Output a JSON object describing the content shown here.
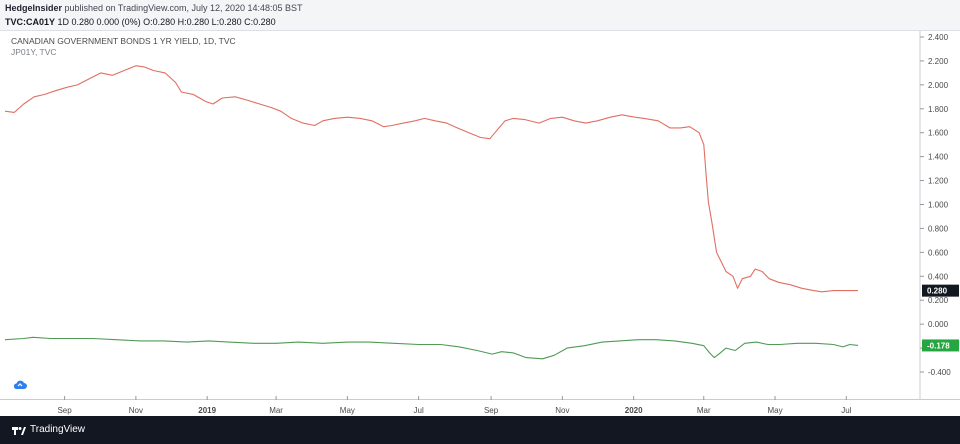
{
  "header": {
    "author": "HedgeInsider",
    "published_text": "published on TradingView.com, July 12, 2020 14:48:05 BST",
    "symbol": "TVC:CA01Y",
    "quote": "1D 0.280 0.000 (0%) O:0.280 H:0.280 L:0.280 C:0.280"
  },
  "legend": {
    "title": "CANADIAN GOVERNMENT BONDS 1 YR YIELD, 1D, TVC",
    "subtitle": "JP01Y, TVC"
  },
  "footer": {
    "brand": "TradingView"
  },
  "icons": {
    "footer_logo": "tradingview-logo-icon",
    "cloud": "cloud-sync-icon"
  },
  "colors": {
    "series_red": "#e06f62",
    "series_green": "#4f9a55",
    "axis_text": "#4a4a4a",
    "price_tag_dark": "#131722",
    "price_tag_green": "#26a641"
  },
  "chart_data": {
    "type": "line",
    "title": "CANADIAN GOVERNMENT BONDS 1 YR YIELD, 1D, TVC",
    "xlabel": "",
    "ylabel": "",
    "ylim": [
      -0.5,
      2.45
    ],
    "y_ticks": [
      "2.400",
      "2.200",
      "2.000",
      "1.800",
      "1.600",
      "1.400",
      "1.200",
      "1.000",
      "0.800",
      "0.600",
      "0.400",
      "0.200",
      "0.000",
      "-0.200",
      "-0.400"
    ],
    "x_ticks": [
      "Sep",
      "Nov",
      "2019",
      "Mar",
      "May",
      "Jul",
      "Sep",
      "Nov",
      "2020",
      "Mar",
      "May",
      "Jul"
    ],
    "x_tick_dates": [
      "2018-09-01",
      "2018-11-01",
      "2019-01-01",
      "2019-03-01",
      "2019-05-01",
      "2019-07-01",
      "2019-09-01",
      "2019-11-01",
      "2020-01-01",
      "2020-03-01",
      "2020-05-01",
      "2020-07-01"
    ],
    "x_range": [
      "2018-07-12",
      "2020-07-11"
    ],
    "grid": false,
    "series": [
      {
        "name": "CANADIAN GOVERNMENT BONDS 1 YR YIELD",
        "color": "#e06f62",
        "last_value_label": "0.280",
        "points": [
          [
            "2018-07-12",
            1.78
          ],
          [
            "2018-07-20",
            1.77
          ],
          [
            "2018-07-28",
            1.84
          ],
          [
            "2018-08-06",
            1.9
          ],
          [
            "2018-08-15",
            1.92
          ],
          [
            "2018-08-24",
            1.95
          ],
          [
            "2018-09-03",
            1.98
          ],
          [
            "2018-09-12",
            2.0
          ],
          [
            "2018-09-22",
            2.05
          ],
          [
            "2018-10-02",
            2.1
          ],
          [
            "2018-10-12",
            2.08
          ],
          [
            "2018-10-22",
            2.12
          ],
          [
            "2018-11-01",
            2.16
          ],
          [
            "2018-11-08",
            2.15
          ],
          [
            "2018-11-16",
            2.12
          ],
          [
            "2018-11-26",
            2.1
          ],
          [
            "2018-12-05",
            2.02
          ],
          [
            "2018-12-10",
            1.94
          ],
          [
            "2018-12-20",
            1.92
          ],
          [
            "2018-12-31",
            1.86
          ],
          [
            "2019-01-06",
            1.84
          ],
          [
            "2019-01-14",
            1.89
          ],
          [
            "2019-01-25",
            1.9
          ],
          [
            "2019-02-05",
            1.87
          ],
          [
            "2019-02-15",
            1.84
          ],
          [
            "2019-02-25",
            1.81
          ],
          [
            "2019-03-05",
            1.78
          ],
          [
            "2019-03-14",
            1.72
          ],
          [
            "2019-03-24",
            1.68
          ],
          [
            "2019-04-03",
            1.66
          ],
          [
            "2019-04-10",
            1.7
          ],
          [
            "2019-04-20",
            1.72
          ],
          [
            "2019-05-01",
            1.73
          ],
          [
            "2019-05-12",
            1.72
          ],
          [
            "2019-05-22",
            1.7
          ],
          [
            "2019-06-01",
            1.65
          ],
          [
            "2019-06-08",
            1.66
          ],
          [
            "2019-06-18",
            1.68
          ],
          [
            "2019-06-28",
            1.7
          ],
          [
            "2019-07-06",
            1.72
          ],
          [
            "2019-07-15",
            1.7
          ],
          [
            "2019-07-25",
            1.68
          ],
          [
            "2019-08-03",
            1.64
          ],
          [
            "2019-08-13",
            1.6
          ],
          [
            "2019-08-23",
            1.56
          ],
          [
            "2019-08-31",
            1.55
          ],
          [
            "2019-09-06",
            1.62
          ],
          [
            "2019-09-13",
            1.7
          ],
          [
            "2019-09-20",
            1.72
          ],
          [
            "2019-09-30",
            1.71
          ],
          [
            "2019-10-12",
            1.68
          ],
          [
            "2019-10-22",
            1.72
          ],
          [
            "2019-11-01",
            1.73
          ],
          [
            "2019-11-11",
            1.7
          ],
          [
            "2019-11-21",
            1.68
          ],
          [
            "2019-12-01",
            1.7
          ],
          [
            "2019-12-12",
            1.73
          ],
          [
            "2019-12-22",
            1.75
          ],
          [
            "2020-01-02",
            1.73
          ],
          [
            "2020-01-10",
            1.72
          ],
          [
            "2020-01-22",
            1.7
          ],
          [
            "2020-02-01",
            1.64
          ],
          [
            "2020-02-10",
            1.64
          ],
          [
            "2020-02-18",
            1.65
          ],
          [
            "2020-02-26",
            1.6
          ],
          [
            "2020-03-01",
            1.5
          ],
          [
            "2020-03-03",
            1.25
          ],
          [
            "2020-03-05",
            1.02
          ],
          [
            "2020-03-08",
            0.85
          ],
          [
            "2020-03-10",
            0.72
          ],
          [
            "2020-03-12",
            0.6
          ],
          [
            "2020-03-16",
            0.52
          ],
          [
            "2020-03-20",
            0.44
          ],
          [
            "2020-03-26",
            0.4
          ],
          [
            "2020-03-30",
            0.3
          ],
          [
            "2020-04-03",
            0.38
          ],
          [
            "2020-04-10",
            0.4
          ],
          [
            "2020-04-14",
            0.46
          ],
          [
            "2020-04-20",
            0.44
          ],
          [
            "2020-04-26",
            0.38
          ],
          [
            "2020-05-04",
            0.35
          ],
          [
            "2020-05-14",
            0.33
          ],
          [
            "2020-05-24",
            0.3
          ],
          [
            "2020-06-03",
            0.28
          ],
          [
            "2020-06-10",
            0.27
          ],
          [
            "2020-06-20",
            0.28
          ],
          [
            "2020-07-01",
            0.28
          ],
          [
            "2020-07-11",
            0.28
          ]
        ]
      },
      {
        "name": "JP01Y",
        "color": "#4f9a55",
        "last_value_label": "-0.178",
        "points": [
          [
            "2018-07-12",
            -0.13
          ],
          [
            "2018-07-28",
            -0.12
          ],
          [
            "2018-08-05",
            -0.11
          ],
          [
            "2018-08-20",
            -0.12
          ],
          [
            "2018-09-05",
            -0.12
          ],
          [
            "2018-09-25",
            -0.12
          ],
          [
            "2018-10-15",
            -0.13
          ],
          [
            "2018-11-05",
            -0.14
          ],
          [
            "2018-11-25",
            -0.14
          ],
          [
            "2018-12-15",
            -0.15
          ],
          [
            "2019-01-02",
            -0.14
          ],
          [
            "2019-01-20",
            -0.15
          ],
          [
            "2019-02-10",
            -0.16
          ],
          [
            "2019-03-01",
            -0.16
          ],
          [
            "2019-03-20",
            -0.15
          ],
          [
            "2019-04-10",
            -0.16
          ],
          [
            "2019-05-01",
            -0.15
          ],
          [
            "2019-05-20",
            -0.15
          ],
          [
            "2019-06-10",
            -0.16
          ],
          [
            "2019-07-01",
            -0.17
          ],
          [
            "2019-07-20",
            -0.17
          ],
          [
            "2019-08-05",
            -0.19
          ],
          [
            "2019-08-20",
            -0.22
          ],
          [
            "2019-09-02",
            -0.25
          ],
          [
            "2019-09-10",
            -0.23
          ],
          [
            "2019-09-20",
            -0.24
          ],
          [
            "2019-10-01",
            -0.28
          ],
          [
            "2019-10-15",
            -0.29
          ],
          [
            "2019-10-25",
            -0.26
          ],
          [
            "2019-11-05",
            -0.2
          ],
          [
            "2019-11-20",
            -0.18
          ],
          [
            "2019-12-05",
            -0.15
          ],
          [
            "2019-12-20",
            -0.14
          ],
          [
            "2020-01-05",
            -0.13
          ],
          [
            "2020-01-20",
            -0.13
          ],
          [
            "2020-02-05",
            -0.14
          ],
          [
            "2020-02-20",
            -0.16
          ],
          [
            "2020-03-01",
            -0.18
          ],
          [
            "2020-03-06",
            -0.24
          ],
          [
            "2020-03-10",
            -0.28
          ],
          [
            "2020-03-14",
            -0.25
          ],
          [
            "2020-03-20",
            -0.2
          ],
          [
            "2020-03-28",
            -0.22
          ],
          [
            "2020-04-05",
            -0.16
          ],
          [
            "2020-04-15",
            -0.15
          ],
          [
            "2020-04-25",
            -0.17
          ],
          [
            "2020-05-05",
            -0.17
          ],
          [
            "2020-05-20",
            -0.16
          ],
          [
            "2020-06-05",
            -0.16
          ],
          [
            "2020-06-20",
            -0.17
          ],
          [
            "2020-06-28",
            -0.19
          ],
          [
            "2020-07-04",
            -0.17
          ],
          [
            "2020-07-11",
            -0.178
          ]
        ]
      }
    ]
  }
}
